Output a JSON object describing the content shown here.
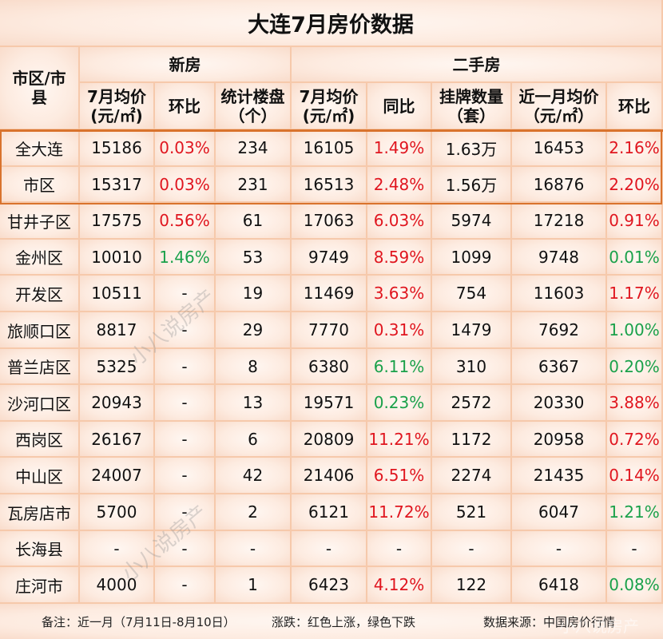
{
  "title": "大连7月房价数据",
  "headers": {
    "region": "市区/市县",
    "new_house_group": "新房",
    "second_hand_group": "二手房",
    "columns": [
      {
        "line1": "7月均价",
        "line2": "(元/㎡)"
      },
      {
        "line1": "环比",
        "line2": ""
      },
      {
        "line1": "统计楼盘",
        "line2": "（个）"
      },
      {
        "line1": "7月均价",
        "line2": "(元/㎡)"
      },
      {
        "line1": "同比",
        "line2": ""
      },
      {
        "line1": "挂牌数量",
        "line2": "（套）"
      },
      {
        "line1": "近一月均价",
        "line2": "（元/㎡）"
      },
      {
        "line1": "环比",
        "line2": ""
      }
    ]
  },
  "rows": [
    {
      "region": "全大连",
      "new_price": "15186",
      "new_mom": "0.03%",
      "new_mom_color": "red",
      "projects": "234",
      "sh_price": "16105",
      "sh_yoy": "1.49%",
      "sh_yoy_color": "red",
      "listings": "1.63万",
      "recent_price": "16453",
      "sh_mom": "2.16%",
      "sh_mom_color": "red"
    },
    {
      "region": "市区",
      "new_price": "15317",
      "new_mom": "0.03%",
      "new_mom_color": "red",
      "projects": "231",
      "sh_price": "16513",
      "sh_yoy": "2.48%",
      "sh_yoy_color": "red",
      "listings": "1.56万",
      "recent_price": "16876",
      "sh_mom": "2.20%",
      "sh_mom_color": "red"
    },
    {
      "region": "甘井子区",
      "new_price": "17575",
      "new_mom": "0.56%",
      "new_mom_color": "red",
      "projects": "61",
      "sh_price": "17063",
      "sh_yoy": "6.03%",
      "sh_yoy_color": "red",
      "listings": "5974",
      "recent_price": "17218",
      "sh_mom": "0.91%",
      "sh_mom_color": "red"
    },
    {
      "region": "金州区",
      "new_price": "10010",
      "new_mom": "1.46%",
      "new_mom_color": "green",
      "projects": "53",
      "sh_price": "9749",
      "sh_yoy": "8.59%",
      "sh_yoy_color": "red",
      "listings": "1099",
      "recent_price": "9748",
      "sh_mom": "0.01%",
      "sh_mom_color": "green"
    },
    {
      "region": "开发区",
      "new_price": "10511",
      "new_mom": "-",
      "new_mom_color": "black",
      "projects": "19",
      "sh_price": "11469",
      "sh_yoy": "3.63%",
      "sh_yoy_color": "red",
      "listings": "754",
      "recent_price": "11603",
      "sh_mom": "1.17%",
      "sh_mom_color": "red"
    },
    {
      "region": "旅顺口区",
      "new_price": "8817",
      "new_mom": "-",
      "new_mom_color": "black",
      "projects": "29",
      "sh_price": "7770",
      "sh_yoy": "0.31%",
      "sh_yoy_color": "red",
      "listings": "1479",
      "recent_price": "7692",
      "sh_mom": "1.00%",
      "sh_mom_color": "green"
    },
    {
      "region": "普兰店区",
      "new_price": "5325",
      "new_mom": "-",
      "new_mom_color": "black",
      "projects": "8",
      "sh_price": "6380",
      "sh_yoy": "6.11%",
      "sh_yoy_color": "green",
      "listings": "310",
      "recent_price": "6367",
      "sh_mom": "0.20%",
      "sh_mom_color": "green"
    },
    {
      "region": "沙河口区",
      "new_price": "20943",
      "new_mom": "-",
      "new_mom_color": "black",
      "projects": "13",
      "sh_price": "19571",
      "sh_yoy": "0.23%",
      "sh_yoy_color": "green",
      "listings": "2572",
      "recent_price": "20330",
      "sh_mom": "3.88%",
      "sh_mom_color": "red"
    },
    {
      "region": "西岗区",
      "new_price": "26167",
      "new_mom": "-",
      "new_mom_color": "black",
      "projects": "6",
      "sh_price": "20809",
      "sh_yoy": "11.21%",
      "sh_yoy_color": "red",
      "listings": "1172",
      "recent_price": "20958",
      "sh_mom": "0.72%",
      "sh_mom_color": "red"
    },
    {
      "region": "中山区",
      "new_price": "24007",
      "new_mom": "-",
      "new_mom_color": "black",
      "projects": "42",
      "sh_price": "21406",
      "sh_yoy": "6.51%",
      "sh_yoy_color": "red",
      "listings": "2274",
      "recent_price": "21435",
      "sh_mom": "0.14%",
      "sh_mom_color": "red"
    },
    {
      "region": "瓦房店市",
      "new_price": "5700",
      "new_mom": "-",
      "new_mom_color": "black",
      "projects": "2",
      "sh_price": "6121",
      "sh_yoy": "11.72%",
      "sh_yoy_color": "red",
      "listings": "521",
      "recent_price": "6047",
      "sh_mom": "1.21%",
      "sh_mom_color": "green"
    },
    {
      "region": "长海县",
      "new_price": "-",
      "new_mom": "-",
      "new_mom_color": "black",
      "projects": "-",
      "sh_price": "-",
      "sh_yoy": "-",
      "sh_yoy_color": "black",
      "listings": "-",
      "recent_price": "-",
      "sh_mom": "-",
      "sh_mom_color": "black"
    },
    {
      "region": "庄河市",
      "new_price": "4000",
      "new_mom": "-",
      "new_mom_color": "black",
      "projects": "1",
      "sh_price": "6423",
      "sh_yoy": "4.12%",
      "sh_yoy_color": "red",
      "listings": "122",
      "recent_price": "6418",
      "sh_mom": "0.08%",
      "sh_mom_color": "green"
    }
  ],
  "footer": {
    "note": "备注：近一月（7月11日-8月10日）",
    "legend": "涨跌：红色上涨，绿色下跌",
    "source": "数据来源：中国房价行情"
  },
  "watermark": "小八说房产",
  "colors": {
    "up": "#e0161f",
    "down": "#1aa14a",
    "highlight_border": "#d9732d",
    "grid": "#f6c9ab"
  }
}
